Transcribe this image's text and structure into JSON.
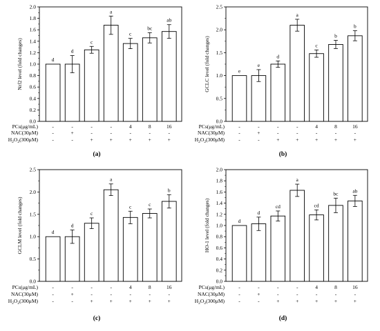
{
  "chart_data": [
    {
      "type": "bar",
      "panel_label": "(a)",
      "ylabel": "Nrf2 level (fold changes)",
      "ylim": [
        0,
        2.0
      ],
      "yticks": [
        "0.0",
        "0.2",
        "0.4",
        "0.6",
        "0.8",
        "1.0",
        "1.2",
        "1.4",
        "1.6",
        "1.8",
        "2.0"
      ],
      "values": [
        1.0,
        1.0,
        1.25,
        1.68,
        1.36,
        1.46,
        1.57
      ],
      "errors": [
        0,
        0.15,
        0.06,
        0.16,
        0.09,
        0.09,
        0.12
      ],
      "letters": [
        "d",
        "d",
        "c",
        "a",
        "c",
        "bc",
        "ab"
      ],
      "conditions": [
        {
          "label": "PCs(μg/mL)",
          "values": [
            "-",
            "-",
            "-",
            "-",
            "4",
            "8",
            "16"
          ]
        },
        {
          "label": "NAC(30μM)",
          "values": [
            "-",
            "+",
            "-",
            "-",
            "-",
            "-",
            "-"
          ]
        },
        {
          "label": "H₂O₂(300μM)",
          "values": [
            "-",
            "-",
            "+",
            "+",
            "+",
            "+",
            "+"
          ]
        }
      ]
    },
    {
      "type": "bar",
      "panel_label": "(b)",
      "ylabel": "GCLC level (fold changes)",
      "ylim": [
        0,
        2.5
      ],
      "yticks": [
        "0.0",
        "0.5",
        "1.0",
        "1.5",
        "2.0",
        "2.5"
      ],
      "values": [
        1.0,
        1.0,
        1.25,
        2.1,
        1.48,
        1.68,
        1.87
      ],
      "errors": [
        0,
        0.13,
        0.07,
        0.13,
        0.08,
        0.09,
        0.11
      ],
      "letters": [
        "e",
        "e",
        "d",
        "a",
        "c",
        "b",
        "b"
      ],
      "conditions": [
        {
          "label": "PCs(μg/mL)",
          "values": [
            "-",
            "-",
            "-",
            "-",
            "4",
            "8",
            "16"
          ]
        },
        {
          "label": "NAC(30μM)",
          "values": [
            "-",
            "+",
            "-",
            "-",
            "-",
            "-",
            "-"
          ]
        },
        {
          "label": "H₂O₂(300μM)",
          "values": [
            "-",
            "-",
            "+",
            "+",
            "+",
            "+",
            "+"
          ]
        }
      ]
    },
    {
      "type": "bar",
      "panel_label": "(c)",
      "ylabel": "GCLM level (fold changes)",
      "ylim": [
        0,
        2.5
      ],
      "yticks": [
        "0.0",
        "0.5",
        "1.0",
        "1.5",
        "2.0",
        "2.5"
      ],
      "values": [
        1.0,
        1.0,
        1.3,
        2.05,
        1.43,
        1.52,
        1.79
      ],
      "errors": [
        0,
        0.15,
        0.12,
        0.13,
        0.14,
        0.1,
        0.15
      ],
      "letters": [
        "d",
        "d",
        "c",
        "a",
        "c",
        "c",
        "b"
      ],
      "conditions": [
        {
          "label": "PCs(μg/mL)",
          "values": [
            "-",
            "-",
            "-",
            "-",
            "4",
            "8",
            "16"
          ]
        },
        {
          "label": "NAC(30μM)",
          "values": [
            "-",
            "+",
            "-",
            "-",
            "-",
            "-",
            "-"
          ]
        },
        {
          "label": "H₂O₂(300μM)",
          "values": [
            "-",
            "-",
            "+",
            "+",
            "+",
            "+",
            "+"
          ]
        }
      ]
    },
    {
      "type": "bar",
      "panel_label": "(d)",
      "ylabel": "HO-1 level (fold changes)",
      "ylim": [
        0,
        2.0
      ],
      "yticks": [
        "0.0",
        "0.2",
        "0.4",
        "0.6",
        "0.8",
        "1.0",
        "1.2",
        "1.4",
        "1.6",
        "1.8",
        "2.0"
      ],
      "values": [
        1.0,
        1.03,
        1.17,
        1.63,
        1.19,
        1.36,
        1.44
      ],
      "errors": [
        0,
        0.12,
        0.09,
        0.11,
        0.09,
        0.13,
        0.1
      ],
      "letters": [
        "d",
        "d",
        "cd",
        "a",
        "cd",
        "bc",
        "ab"
      ],
      "conditions": [
        {
          "label": "PCs(μg/mL)",
          "values": [
            "-",
            "-",
            "-",
            "-",
            "4",
            "8",
            "16"
          ]
        },
        {
          "label": "NAC(30μM)",
          "values": [
            "-",
            "+",
            "-",
            "-",
            "-",
            "-",
            "-"
          ]
        },
        {
          "label": "H₂O₂(300μM)",
          "values": [
            "-",
            "-",
            "+",
            "+",
            "+",
            "+",
            "+"
          ]
        }
      ]
    }
  ]
}
